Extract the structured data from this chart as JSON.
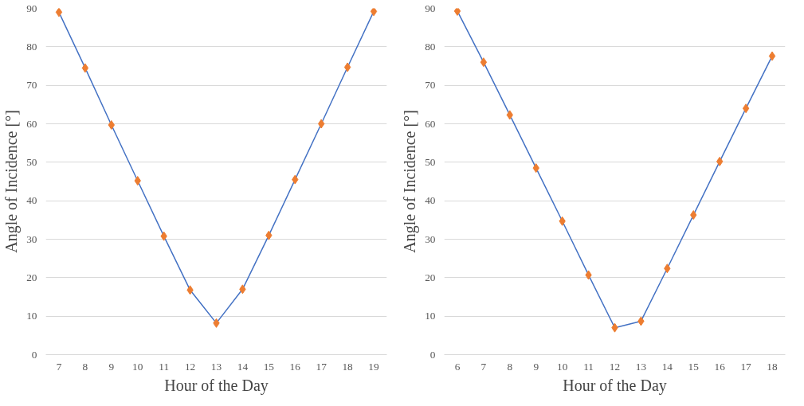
{
  "chart_data": [
    {
      "type": "line",
      "xlabel": "Hour of the Day",
      "ylabel": "Angle of Incidence [°]",
      "categories": [
        "7",
        "8",
        "9",
        "10",
        "11",
        "12",
        "13",
        "14",
        "15",
        "16",
        "17",
        "18",
        "19"
      ],
      "ylim": [
        0,
        90
      ],
      "yticks": [
        0,
        10,
        20,
        30,
        40,
        50,
        60,
        70,
        80,
        90
      ],
      "grid": "y",
      "series": [
        {
          "color": "#4472c4",
          "values": [
            89,
            74.5,
            59.7,
            45.2,
            30.8,
            16.8,
            8.2,
            17,
            31,
            45.5,
            60,
            74.7,
            89.2
          ]
        },
        {
          "type": "scatter",
          "marker": "diamond",
          "color": "#ed7d31",
          "values": [
            89,
            74.5,
            59.7,
            45.2,
            30.8,
            16.8,
            8.2,
            17,
            31,
            45.5,
            60,
            74.7,
            89.2
          ]
        }
      ]
    },
    {
      "type": "line",
      "xlabel": "Hour of the Day",
      "ylabel": "Angle of Incidence [°]",
      "categories": [
        "6",
        "7",
        "8",
        "9",
        "10",
        "11",
        "12",
        "13",
        "14",
        "15",
        "16",
        "17",
        "18"
      ],
      "ylim": [
        0,
        90
      ],
      "yticks": [
        0,
        10,
        20,
        30,
        40,
        50,
        60,
        70,
        80,
        90
      ],
      "grid": "y",
      "series": [
        {
          "color": "#4472c4",
          "values": [
            89.3,
            76,
            62.3,
            48.5,
            34.7,
            20.7,
            7,
            8.7,
            22.4,
            36.3,
            50.2,
            64,
            77.6
          ]
        },
        {
          "type": "scatter",
          "marker": "diamond",
          "color": "#ed7d31",
          "values": [
            89.3,
            76,
            62.3,
            48.5,
            34.7,
            20.7,
            7,
            8.7,
            22.4,
            36.3,
            50.2,
            64,
            77.6
          ]
        }
      ]
    }
  ]
}
